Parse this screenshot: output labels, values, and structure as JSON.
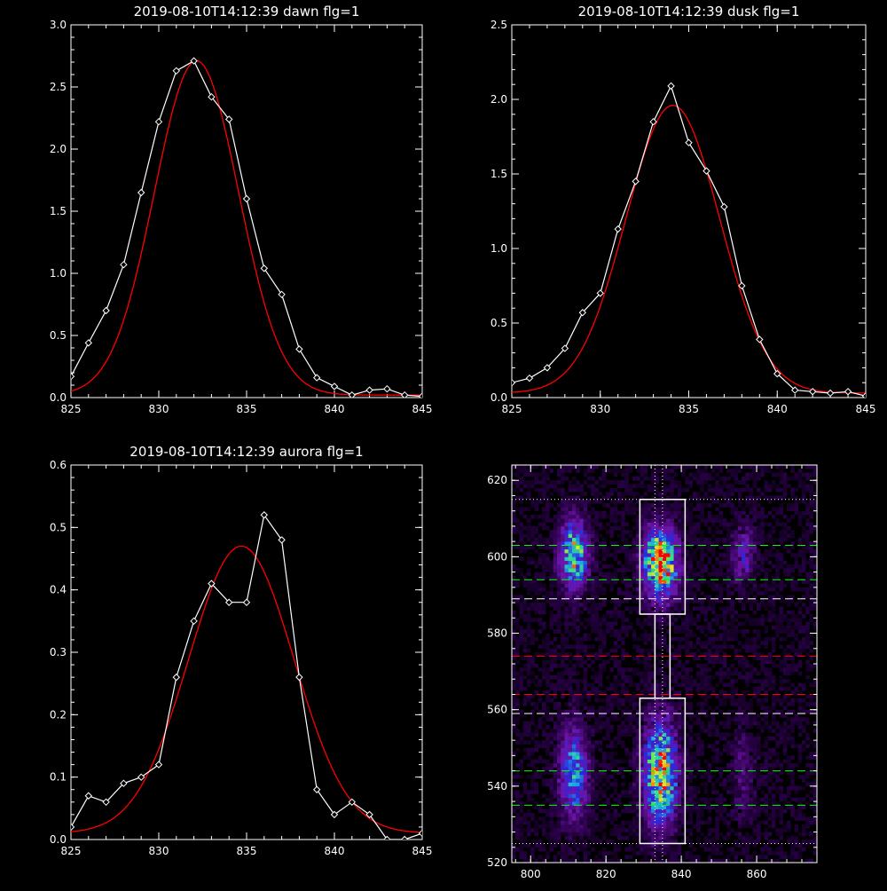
{
  "chart_data": [
    {
      "type": "line",
      "title": "2019-08-10T14:12:39 dawn flg=1",
      "xlim": [
        825,
        845
      ],
      "ylim": [
        0,
        3.0
      ],
      "xticks": [
        825,
        830,
        835,
        840,
        845
      ],
      "yticks": [
        0,
        0.5,
        1.0,
        1.5,
        2.0,
        2.5,
        3.0
      ],
      "xticklabels": [
        "825",
        "830",
        "835",
        "840",
        "845"
      ],
      "yticklabels": [
        "0.0",
        "0.5",
        "1.0",
        "1.5",
        "2.0",
        "2.5",
        "3.0"
      ],
      "series": [
        {
          "style": "data",
          "color": "#ffffff",
          "x": [
            825,
            826,
            827,
            828,
            829,
            830,
            831,
            832,
            833,
            834,
            835,
            836,
            837,
            838,
            839,
            840,
            841,
            842,
            843,
            844,
            845
          ],
          "y": [
            0.17,
            0.44,
            0.7,
            1.07,
            1.65,
            2.22,
            2.63,
            2.71,
            2.42,
            2.24,
            1.6,
            1.04,
            0.83,
            0.39,
            0.16,
            0.09,
            0.02,
            0.06,
            0.07,
            0.02,
            0.01
          ]
        },
        {
          "style": "fit",
          "color": "#ff0000",
          "kind": "gauss",
          "amp": 2.69,
          "mu": 832.15,
          "sigma": 2.4,
          "base": 0.02
        }
      ]
    },
    {
      "type": "line",
      "title": "2019-08-10T14:12:39 dusk flg=1",
      "xlim": [
        825,
        845
      ],
      "ylim": [
        0,
        2.5
      ],
      "xticks": [
        825,
        830,
        835,
        840,
        845
      ],
      "yticks": [
        0,
        0.5,
        1.0,
        1.5,
        2.0,
        2.5
      ],
      "xticklabels": [
        "825",
        "830",
        "835",
        "840",
        "845"
      ],
      "yticklabels": [
        "0.0",
        "0.5",
        "1.0",
        "1.5",
        "2.0",
        "2.5"
      ],
      "series": [
        {
          "style": "data",
          "color": "#ffffff",
          "x": [
            825,
            826,
            827,
            828,
            829,
            830,
            831,
            832,
            833,
            834,
            835,
            836,
            837,
            838,
            839,
            840,
            841,
            842,
            843,
            844,
            845
          ],
          "y": [
            0.1,
            0.13,
            0.2,
            0.33,
            0.57,
            0.7,
            1.13,
            1.45,
            1.85,
            2.09,
            1.71,
            1.52,
            1.28,
            0.75,
            0.39,
            0.16,
            0.05,
            0.04,
            0.03,
            0.04,
            0.01
          ]
        },
        {
          "style": "fit",
          "color": "#ff0000",
          "kind": "gauss",
          "amp": 1.93,
          "mu": 834.1,
          "sigma": 2.65,
          "base": 0.03
        }
      ]
    },
    {
      "type": "line",
      "title": "2019-08-10T14:12:39 aurora flg=1",
      "xlim": [
        825,
        845
      ],
      "ylim": [
        0,
        0.6
      ],
      "xticks": [
        825,
        830,
        835,
        840,
        845
      ],
      "yticks": [
        0,
        0.1,
        0.2,
        0.3,
        0.4,
        0.5,
        0.6
      ],
      "xticklabels": [
        "825",
        "830",
        "835",
        "840",
        "845"
      ],
      "yticklabels": [
        "0.0",
        "0.1",
        "0.2",
        "0.3",
        "0.4",
        "0.5",
        "0.6"
      ],
      "series": [
        {
          "style": "data",
          "color": "#ffffff",
          "x": [
            825,
            826,
            827,
            828,
            829,
            830,
            831,
            832,
            833,
            834,
            835,
            836,
            837,
            838,
            839,
            840,
            841,
            842,
            843,
            844,
            845
          ],
          "y": [
            0.02,
            0.07,
            0.06,
            0.09,
            0.1,
            0.12,
            0.26,
            0.35,
            0.41,
            0.38,
            0.38,
            0.52,
            0.48,
            0.26,
            0.08,
            0.04,
            0.06,
            0.04,
            0.0,
            0.0,
            0.01
          ]
        },
        {
          "style": "fit",
          "color": "#ff0000",
          "kind": "gauss",
          "amp": 0.46,
          "mu": 834.7,
          "sigma": 3.0,
          "base": 0.01
        }
      ]
    },
    {
      "type": "heatmap",
      "xlim": [
        795,
        876
      ],
      "ylim": [
        520,
        624
      ],
      "xticks": [
        800,
        820,
        840,
        860
      ],
      "yticks": [
        520,
        540,
        560,
        580,
        600,
        620
      ],
      "xticklabels": [
        "800",
        "820",
        "840",
        "860"
      ],
      "yticklabels": [
        "520",
        "540",
        "560",
        "580",
        "600",
        "620"
      ],
      "blobs": [
        {
          "x": 811,
          "y": 600,
          "sx": 2.5,
          "sy": 6,
          "amp": 0.75
        },
        {
          "x": 811,
          "y": 543,
          "sx": 2.5,
          "sy": 8,
          "amp": 0.55
        },
        {
          "x": 834,
          "y": 598,
          "sx": 3,
          "sy": 6,
          "amp": 1.0
        },
        {
          "x": 834,
          "y": 543,
          "sx": 3,
          "sy": 9,
          "amp": 0.85
        },
        {
          "x": 856,
          "y": 600,
          "sx": 2,
          "sy": 5,
          "amp": 0.3
        },
        {
          "x": 856,
          "y": 543,
          "sx": 2,
          "sy": 8,
          "amp": 0.15
        }
      ],
      "boxes": [
        {
          "x0": 829,
          "x1": 841,
          "y0": 585,
          "y1": 615
        },
        {
          "x0": 829,
          "x1": 841,
          "y0": 525,
          "y1": 563
        },
        {
          "x0": 833,
          "x1": 837,
          "y0": 563,
          "y1": 585
        }
      ],
      "hlines": [
        {
          "y": 615,
          "color": "#ffffff",
          "dash": "dotted"
        },
        {
          "y": 603,
          "color": "#00ff00",
          "dash": "dashed"
        },
        {
          "y": 594,
          "color": "#00ff00",
          "dash": "dashed"
        },
        {
          "y": 589,
          "color": "#ffffff",
          "dash": "dashed"
        },
        {
          "y": 574,
          "color": "#ff0000",
          "dash": "dashed"
        },
        {
          "y": 564,
          "color": "#ff0000",
          "dash": "dashed"
        },
        {
          "y": 559,
          "color": "#ffffff",
          "dash": "dashed"
        },
        {
          "y": 544,
          "color": "#00ff00",
          "dash": "dashed"
        },
        {
          "y": 535,
          "color": "#00ff00",
          "dash": "dashed"
        },
        {
          "y": 525,
          "color": "#ffffff",
          "dash": "dotted"
        }
      ],
      "vlines": [
        {
          "x": 833,
          "color": "#ffffff",
          "dash": "dotted"
        },
        {
          "x": 835,
          "color": "#ffffff",
          "dash": "dotted"
        }
      ]
    }
  ]
}
